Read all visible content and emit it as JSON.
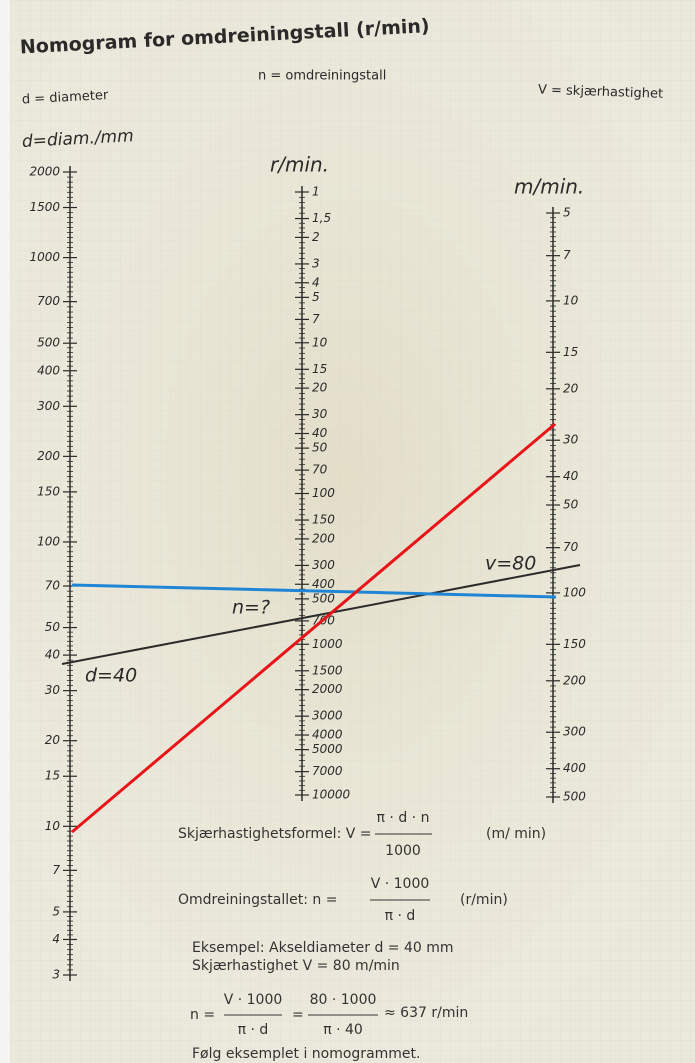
{
  "header": {
    "title": "Nomogram for omdreiningstall (r/min)",
    "legend": [
      "d = diameter",
      "n = omdreiningstall",
      "V = skjærhastighet"
    ]
  },
  "scales": [
    {
      "title": "d=diam./mm",
      "labels": [
        2000,
        1500,
        1000,
        700,
        500,
        400,
        300,
        200,
        150,
        100,
        70,
        50,
        40,
        30,
        20,
        15,
        10,
        7,
        5,
        4,
        3
      ]
    },
    {
      "title": "r/min.",
      "labels": [
        1,
        {
          "value": 1.5,
          "label": "1,5"
        },
        2,
        3,
        4,
        5,
        7,
        10,
        15,
        20,
        30,
        40,
        50,
        70,
        100,
        150,
        200,
        300,
        400,
        500,
        700,
        1000,
        1500,
        2000,
        3000,
        4000,
        5000,
        7000,
        10000
      ]
    },
    {
      "title": "m/min.",
      "labels": [
        5,
        7,
        10,
        15,
        20,
        30,
        40,
        50,
        70,
        100,
        150,
        200,
        300,
        400,
        500
      ]
    }
  ],
  "annotations": [
    "n=?",
    "d=40",
    "v=80"
  ],
  "formulas": {
    "speed": {
      "lead": "Skjærhastighetsformel: V =",
      "numerator": "π · d · n",
      "denominator": "1000",
      "unit": "(m/ min)"
    },
    "rpm": {
      "lead": "Omdreiningstallet: n =",
      "numerator": "V · 1000",
      "denominator": "π · d",
      "unit": "(r/min)"
    },
    "example": [
      "Eksempel: Akseldiameter d = 40 mm",
      "Skjærhastighet V = 80 m/min"
    ],
    "calc": {
      "lead": "n =",
      "numerator1": "V · 1000",
      "denominator1": "π · d",
      "equals": "=",
      "numerator2": "80 · 1000",
      "denominator2": "π · 40",
      "result": "≈ 637 r/min"
    },
    "footer": "Følg eksemplet i nomogrammet."
  }
}
